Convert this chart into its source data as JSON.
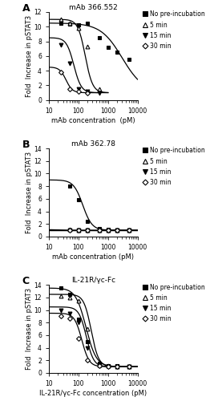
{
  "panel_A": {
    "title": "mAb 366.552",
    "xlabel": "mAb concentration  (pM)",
    "ylabel": "Fold  Increase in pSTAT3",
    "ylim": [
      0,
      12
    ],
    "yticks": [
      0,
      2,
      4,
      6,
      8,
      10,
      12
    ],
    "xlim": [
      10,
      10000
    ],
    "series": [
      {
        "label": "No pre-incubation",
        "marker": "s",
        "filled": true,
        "x": [
          25,
          50,
          100,
          200,
          500,
          1000,
          2000,
          5000
        ],
        "y": [
          10.5,
          10.4,
          10.3,
          10.5,
          8.5,
          7.2,
          6.5,
          5.5
        ],
        "ic50": 3000,
        "hill": 1.2,
        "top": 10.5,
        "bottom": 1.0,
        "x_curve_start": 10,
        "x_curve_end": 10000
      },
      {
        "label": "5 min",
        "marker": "^",
        "filled": false,
        "x": [
          25,
          50,
          100,
          200,
          500
        ],
        "y": [
          11.0,
          10.5,
          9.8,
          7.3,
          1.5
        ],
        "ic50": 170,
        "hill": 3.5,
        "top": 11.0,
        "bottom": 1.0,
        "x_curve_start": 10,
        "x_curve_end": 1000
      },
      {
        "label": "15 min",
        "marker": "v",
        "filled": true,
        "x": [
          25,
          50,
          100,
          200,
          500
        ],
        "y": [
          7.5,
          5.0,
          1.5,
          1.2,
          1.0
        ],
        "ic50": 70,
        "hill": 3.5,
        "top": 8.5,
        "bottom": 1.0,
        "x_curve_start": 10,
        "x_curve_end": 1000
      },
      {
        "label": "30 min",
        "marker": "D",
        "filled": false,
        "x": [
          25,
          50,
          100,
          200
        ],
        "y": [
          3.8,
          1.5,
          1.2,
          1.0
        ],
        "ic50": 38,
        "hill": 4.0,
        "top": 4.5,
        "bottom": 1.0,
        "x_curve_start": 10,
        "x_curve_end": 500
      }
    ]
  },
  "panel_B": {
    "title": "mAb 362.78",
    "xlabel": "mAb concentration (pM)",
    "ylabel": "Fold  Increase in pSTAT3",
    "ylim": [
      0,
      14
    ],
    "yticks": [
      0,
      2,
      4,
      6,
      8,
      10,
      12,
      14
    ],
    "xlim": [
      10,
      10000
    ],
    "series": [
      {
        "label": "No pre-incubation",
        "marker": "s",
        "filled": true,
        "x": [
          50,
          100,
          200,
          500,
          1000,
          2000,
          5000
        ],
        "y": [
          8.0,
          5.9,
          2.4,
          1.2,
          1.1,
          1.0,
          1.0
        ],
        "ic50": 140,
        "hill": 2.8,
        "top": 9.0,
        "bottom": 1.0,
        "x_curve_start": 10,
        "x_curve_end": 10000
      },
      {
        "label": "5 min",
        "marker": "^",
        "filled": false,
        "x": [
          50,
          100,
          200,
          500,
          1000,
          2000,
          5000
        ],
        "y": [
          1.1,
          1.0,
          1.0,
          1.0,
          1.0,
          1.0,
          1.0
        ],
        "ic50": 20,
        "hill": 3.0,
        "top": 1.1,
        "bottom": 1.0,
        "x_curve_start": 10,
        "x_curve_end": 10000
      },
      {
        "label": "15 min",
        "marker": "v",
        "filled": true,
        "x": [
          50,
          100,
          200,
          500,
          1000,
          2000,
          5000
        ],
        "y": [
          1.0,
          1.0,
          1.0,
          1.0,
          1.0,
          1.0,
          1.0
        ],
        "ic50": 15,
        "hill": 3.0,
        "top": 1.0,
        "bottom": 1.0,
        "x_curve_start": 10,
        "x_curve_end": 10000
      },
      {
        "label": "30 min",
        "marker": "D",
        "filled": false,
        "x": [
          50,
          100,
          200,
          500,
          1000,
          2000,
          5000
        ],
        "y": [
          1.0,
          1.0,
          1.0,
          1.0,
          1.0,
          1.0,
          1.0
        ],
        "ic50": 12,
        "hill": 3.0,
        "top": 1.0,
        "bottom": 1.0,
        "x_curve_start": 10,
        "x_curve_end": 10000
      }
    ]
  },
  "panel_C": {
    "title": "IL-21R/γc-Fc",
    "xlabel": "IL-21R/γc-Fc concentration (pM)",
    "ylabel": "Fold  Increase in pSTAT3",
    "ylim": [
      0,
      14
    ],
    "yticks": [
      0,
      2,
      4,
      6,
      8,
      10,
      12,
      14
    ],
    "xlim": [
      10,
      10000
    ],
    "series": [
      {
        "label": "No pre-incubation",
        "marker": "s",
        "filled": true,
        "x": [
          25,
          50,
          100,
          200,
          500,
          1000,
          2000,
          5000
        ],
        "y": [
          13.5,
          12.5,
          8.5,
          5.0,
          1.5,
          1.2,
          1.1,
          1.0
        ],
        "ic50": 180,
        "hill": 2.5,
        "top": 13.5,
        "bottom": 1.0,
        "x_curve_start": 10,
        "x_curve_end": 10000
      },
      {
        "label": "5 min",
        "marker": "^",
        "filled": false,
        "x": [
          25,
          50,
          100,
          200,
          500,
          1000,
          2000,
          5000
        ],
        "y": [
          12.2,
          12.0,
          11.5,
          7.0,
          1.3,
          1.1,
          1.0,
          1.0
        ],
        "ic50": 270,
        "hill": 3.5,
        "top": 12.5,
        "bottom": 1.0,
        "x_curve_start": 10,
        "x_curve_end": 10000
      },
      {
        "label": "15 min",
        "marker": "v",
        "filled": true,
        "x": [
          25,
          50,
          100,
          200,
          500,
          1000,
          2000,
          5000
        ],
        "y": [
          10.0,
          9.5,
          8.0,
          4.0,
          1.2,
          1.0,
          1.0,
          1.0
        ],
        "ic50": 185,
        "hill": 3.5,
        "top": 10.5,
        "bottom": 1.0,
        "x_curve_start": 10,
        "x_curve_end": 10000
      },
      {
        "label": "30 min",
        "marker": "D",
        "filled": false,
        "x": [
          25,
          50,
          100,
          200,
          500,
          1000,
          2000,
          5000
        ],
        "y": [
          9.0,
          8.7,
          5.5,
          2.0,
          1.1,
          1.0,
          1.0,
          1.0
        ],
        "ic50": 130,
        "hill": 3.5,
        "top": 9.5,
        "bottom": 1.0,
        "x_curve_start": 10,
        "x_curve_end": 10000
      }
    ]
  },
  "legend_labels": [
    "No pre-incubation",
    "5 min",
    "15 min",
    "30 min"
  ],
  "legend_markers": [
    "s",
    "^",
    "v",
    "D"
  ],
  "legend_filled": [
    true,
    false,
    true,
    false
  ],
  "color": "#000000",
  "background": "#ffffff"
}
